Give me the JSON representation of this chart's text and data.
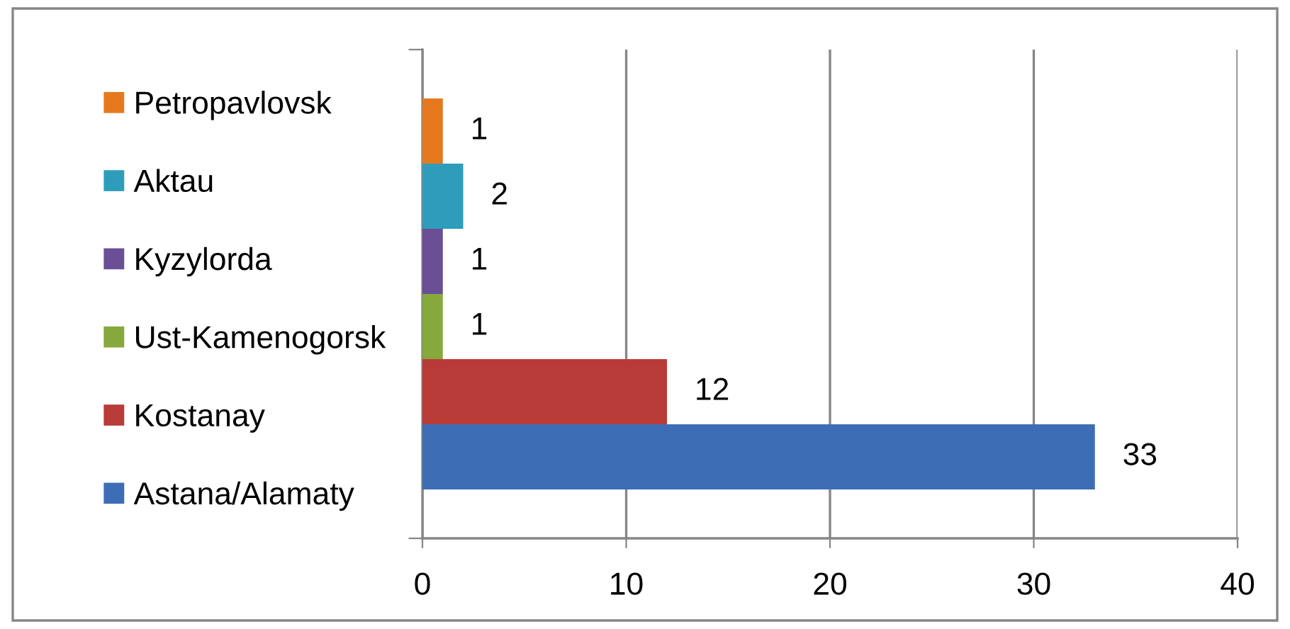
{
  "chart_data": {
    "type": "bar",
    "orientation": "horizontal",
    "categories": [
      null
    ],
    "series": [
      {
        "name": "Astana/Alamaty",
        "color": "#3d6db5",
        "values": [
          33
        ]
      },
      {
        "name": "Kostanay",
        "color": "#b83b38",
        "values": [
          12
        ]
      },
      {
        "name": "Ust-Kamenogorsk",
        "color": "#86a83c",
        "values": [
          1
        ]
      },
      {
        "name": "Kyzylorda",
        "color": "#6a4e96",
        "values": [
          1
        ]
      },
      {
        "name": "Aktau",
        "color": "#2e9dbb",
        "values": [
          2
        ]
      },
      {
        "name": "Petropavlovsk",
        "color": "#e6791e",
        "values": [
          1
        ]
      }
    ],
    "xlim": [
      0,
      40
    ],
    "xticks": [
      0,
      10,
      20,
      30,
      40
    ],
    "grid": "x",
    "legend": "left",
    "data_labels": true
  }
}
